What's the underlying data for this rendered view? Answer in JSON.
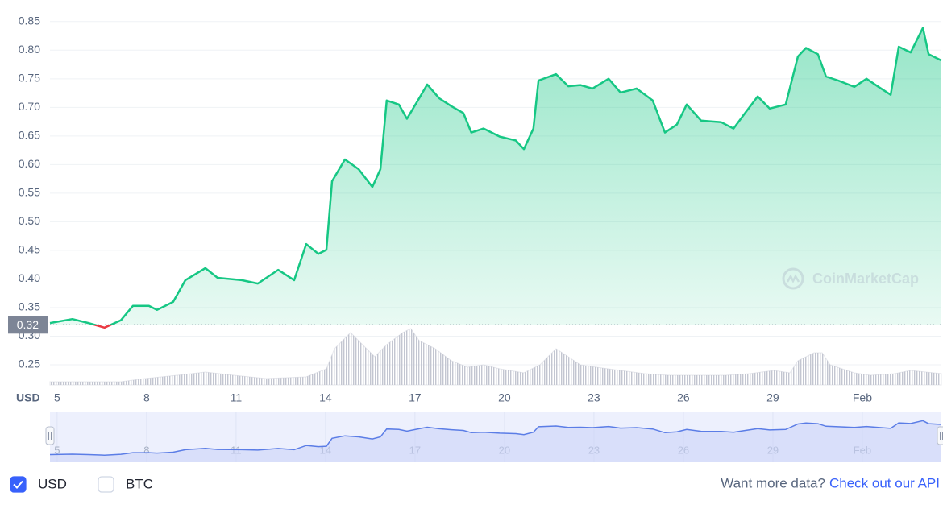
{
  "chart_data": {
    "type": "line",
    "x": [
      4.76,
      5.51,
      6.05,
      6.59,
      7.14,
      7.54,
      8.08,
      8.35,
      8.89,
      9.3,
      9.97,
      10.38,
      11.19,
      11.73,
      12.41,
      12.95,
      13.35,
      13.76,
      14.03,
      14.22,
      14.65,
      15.11,
      15.57,
      15.84,
      16.05,
      16.46,
      16.73,
      17.14,
      17.41,
      17.81,
      18.22,
      18.62,
      18.89,
      19.3,
      19.84,
      20.38,
      20.65,
      20.97,
      21.14,
      21.73,
      22.14,
      22.54,
      22.95,
      23.49,
      23.89,
      24.43,
      24.97,
      25.38,
      25.78,
      26.11,
      26.59,
      27.27,
      27.68,
      28.08,
      28.49,
      28.89,
      29.43,
      29.84,
      30.11,
      30.51,
      30.78,
      31.19,
      31.73,
      32.14,
      32.54,
      32.95,
      33.22,
      33.62,
      34.03,
      34.22,
      34.65
    ],
    "series": [
      {
        "color": "#16c784",
        "down_color": "#ea3943",
        "values": [
          0.323,
          0.33,
          0.323,
          0.315,
          0.328,
          0.353,
          0.353,
          0.346,
          0.36,
          0.398,
          0.419,
          0.402,
          0.398,
          0.392,
          0.416,
          0.398,
          0.461,
          0.444,
          0.451,
          0.571,
          0.609,
          0.592,
          0.561,
          0.592,
          0.712,
          0.705,
          0.68,
          0.716,
          0.74,
          0.716,
          0.702,
          0.69,
          0.656,
          0.663,
          0.649,
          0.642,
          0.627,
          0.663,
          0.747,
          0.758,
          0.737,
          0.739,
          0.733,
          0.75,
          0.726,
          0.733,
          0.712,
          0.656,
          0.67,
          0.705,
          0.677,
          0.674,
          0.663,
          0.691,
          0.719,
          0.698,
          0.705,
          0.789,
          0.804,
          0.793,
          0.754,
          0.747,
          0.736,
          0.75,
          0.736,
          0.722,
          0.806,
          0.796,
          0.839,
          0.793,
          0.782
        ]
      }
    ],
    "volume": {
      "color": "#c3c6d1",
      "x": [
        4.76,
        7.14,
        7.95,
        9.03,
        9.97,
        10.92,
        12.0,
        13.35,
        14.03,
        14.3,
        14.84,
        15.24,
        15.65,
        16.05,
        16.59,
        16.86,
        17.14,
        17.68,
        18.22,
        18.76,
        19.3,
        19.84,
        20.65,
        21.19,
        21.73,
        22.14,
        22.54,
        23.08,
        23.89,
        24.7,
        25.51,
        26.32,
        27.41,
        28.22,
        29.03,
        29.57,
        29.84,
        30.38,
        30.65,
        30.92,
        31.73,
        32.27,
        33.08,
        33.62,
        34.65
      ],
      "values": [
        4,
        4,
        8,
        12,
        16,
        12,
        8,
        10,
        20,
        45,
        65,
        50,
        35,
        50,
        65,
        70,
        55,
        45,
        30,
        22,
        25,
        20,
        15,
        25,
        45,
        35,
        25,
        22,
        18,
        14,
        12,
        12,
        12,
        14,
        18,
        15,
        30,
        40,
        40,
        25,
        15,
        12,
        14,
        18,
        14
      ]
    },
    "xlim": [
      4.76,
      34.65
    ],
    "xticks": [
      5,
      8,
      11,
      14,
      17,
      20,
      23,
      26,
      29,
      {
        "value": 32,
        "label": "Feb"
      }
    ],
    "ylim": [
      0.212,
      0.868
    ],
    "yticks": [
      0.25,
      {
        "value": 0.3,
        "label": "0.30"
      },
      0.35,
      {
        "value": 0.4,
        "label": "0.40"
      },
      0.45,
      {
        "value": 0.5,
        "label": "0.50"
      },
      0.55,
      {
        "value": 0.6,
        "label": "0.60"
      },
      0.65,
      {
        "value": 0.7,
        "label": "0.70"
      },
      0.75,
      {
        "value": 0.8,
        "label": "0.80"
      },
      0.85
    ],
    "y2lim": [
      0,
      100
    ],
    "y_axis_label": "USD",
    "reference": 0.32,
    "watermark": "CoinMarketCap",
    "grid": true
  },
  "toggles": [
    {
      "label": "USD",
      "checked": true
    },
    {
      "label": "BTC",
      "checked": false
    }
  ],
  "footer": {
    "text": "Want more data?",
    "link": "Check out our API"
  }
}
